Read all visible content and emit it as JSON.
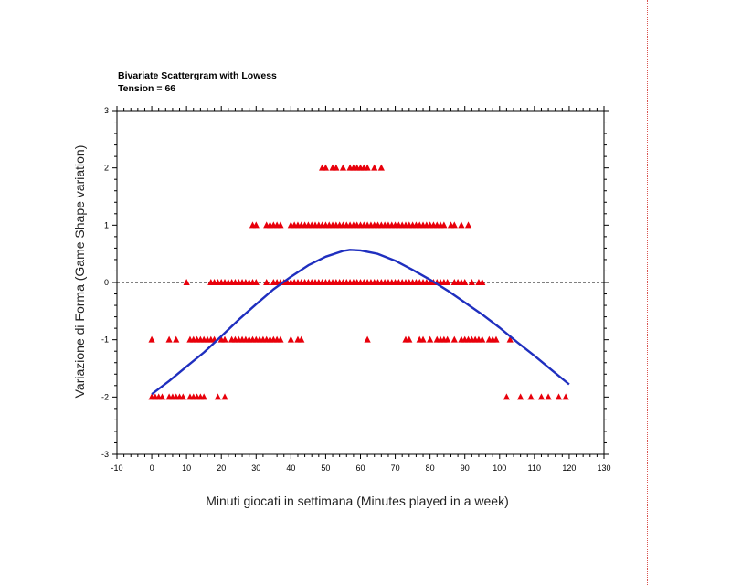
{
  "chart_data": {
    "type": "scatter",
    "title": "Bivariate Scattergram with Lowess",
    "subtitle": "Tension = 66",
    "xlabel": "Minuti giocati in settimana (Minutes played in a week)",
    "ylabel": "Variazione di Forma (Game Shape variation)",
    "xlim": [
      -10,
      130
    ],
    "ylim": [
      -3,
      3
    ],
    "x_ticks": [
      -10,
      0,
      10,
      20,
      30,
      40,
      50,
      60,
      70,
      80,
      90,
      100,
      110,
      120,
      130
    ],
    "y_ticks": [
      -3,
      -2,
      -1,
      0,
      1,
      2,
      3
    ],
    "reference_line": {
      "y": 0,
      "style": "dashed",
      "color": "#000000"
    },
    "grid": false,
    "colors": {
      "points": "#e8000b",
      "curve": "#1f2fbf"
    },
    "series": [
      {
        "marker": "triangle",
        "points": [
          [
            49,
            2
          ],
          [
            50,
            2
          ],
          [
            52,
            2
          ],
          [
            53,
            2
          ],
          [
            55,
            2
          ],
          [
            57,
            2
          ],
          [
            58,
            2
          ],
          [
            59,
            2
          ],
          [
            60,
            2
          ],
          [
            61,
            2
          ],
          [
            62,
            2
          ],
          [
            64,
            2
          ],
          [
            66,
            2
          ],
          [
            29,
            1
          ],
          [
            30,
            1
          ],
          [
            33,
            1
          ],
          [
            34,
            1
          ],
          [
            35,
            1
          ],
          [
            36,
            1
          ],
          [
            37,
            1
          ],
          [
            40,
            1
          ],
          [
            41,
            1
          ],
          [
            42,
            1
          ],
          [
            43,
            1
          ],
          [
            44,
            1
          ],
          [
            45,
            1
          ],
          [
            46,
            1
          ],
          [
            47,
            1
          ],
          [
            48,
            1
          ],
          [
            49,
            1
          ],
          [
            50,
            1
          ],
          [
            51,
            1
          ],
          [
            52,
            1
          ],
          [
            53,
            1
          ],
          [
            54,
            1
          ],
          [
            55,
            1
          ],
          [
            56,
            1
          ],
          [
            57,
            1
          ],
          [
            58,
            1
          ],
          [
            59,
            1
          ],
          [
            60,
            1
          ],
          [
            61,
            1
          ],
          [
            62,
            1
          ],
          [
            63,
            1
          ],
          [
            64,
            1
          ],
          [
            65,
            1
          ],
          [
            66,
            1
          ],
          [
            67,
            1
          ],
          [
            68,
            1
          ],
          [
            69,
            1
          ],
          [
            70,
            1
          ],
          [
            71,
            1
          ],
          [
            72,
            1
          ],
          [
            73,
            1
          ],
          [
            74,
            1
          ],
          [
            75,
            1
          ],
          [
            76,
            1
          ],
          [
            77,
            1
          ],
          [
            78,
            1
          ],
          [
            79,
            1
          ],
          [
            80,
            1
          ],
          [
            81,
            1
          ],
          [
            82,
            1
          ],
          [
            83,
            1
          ],
          [
            84,
            1
          ],
          [
            86,
            1
          ],
          [
            87,
            1
          ],
          [
            89,
            1
          ],
          [
            91,
            1
          ],
          [
            10,
            0
          ],
          [
            17,
            0
          ],
          [
            18,
            0
          ],
          [
            19,
            0
          ],
          [
            20,
            0
          ],
          [
            21,
            0
          ],
          [
            22,
            0
          ],
          [
            23,
            0
          ],
          [
            24,
            0
          ],
          [
            25,
            0
          ],
          [
            26,
            0
          ],
          [
            27,
            0
          ],
          [
            28,
            0
          ],
          [
            29,
            0
          ],
          [
            30,
            0
          ],
          [
            33,
            0
          ],
          [
            35,
            0
          ],
          [
            36,
            0
          ],
          [
            37,
            0
          ],
          [
            38,
            0
          ],
          [
            39,
            0
          ],
          [
            40,
            0
          ],
          [
            41,
            0
          ],
          [
            42,
            0
          ],
          [
            43,
            0
          ],
          [
            44,
            0
          ],
          [
            45,
            0
          ],
          [
            46,
            0
          ],
          [
            47,
            0
          ],
          [
            48,
            0
          ],
          [
            49,
            0
          ],
          [
            50,
            0
          ],
          [
            51,
            0
          ],
          [
            52,
            0
          ],
          [
            53,
            0
          ],
          [
            54,
            0
          ],
          [
            55,
            0
          ],
          [
            56,
            0
          ],
          [
            57,
            0
          ],
          [
            58,
            0
          ],
          [
            59,
            0
          ],
          [
            60,
            0
          ],
          [
            61,
            0
          ],
          [
            62,
            0
          ],
          [
            63,
            0
          ],
          [
            64,
            0
          ],
          [
            65,
            0
          ],
          [
            66,
            0
          ],
          [
            67,
            0
          ],
          [
            68,
            0
          ],
          [
            69,
            0
          ],
          [
            70,
            0
          ],
          [
            71,
            0
          ],
          [
            72,
            0
          ],
          [
            73,
            0
          ],
          [
            74,
            0
          ],
          [
            75,
            0
          ],
          [
            76,
            0
          ],
          [
            77,
            0
          ],
          [
            78,
            0
          ],
          [
            79,
            0
          ],
          [
            80,
            0
          ],
          [
            81,
            0
          ],
          [
            82,
            0
          ],
          [
            83,
            0
          ],
          [
            84,
            0
          ],
          [
            85,
            0
          ],
          [
            87,
            0
          ],
          [
            88,
            0
          ],
          [
            89,
            0
          ],
          [
            90,
            0
          ],
          [
            92,
            0
          ],
          [
            94,
            0
          ],
          [
            95,
            0
          ],
          [
            0,
            -1
          ],
          [
            5,
            -1
          ],
          [
            7,
            -1
          ],
          [
            11,
            -1
          ],
          [
            12,
            -1
          ],
          [
            13,
            -1
          ],
          [
            14,
            -1
          ],
          [
            15,
            -1
          ],
          [
            16,
            -1
          ],
          [
            17,
            -1
          ],
          [
            18,
            -1
          ],
          [
            20,
            -1
          ],
          [
            21,
            -1
          ],
          [
            23,
            -1
          ],
          [
            24,
            -1
          ],
          [
            25,
            -1
          ],
          [
            26,
            -1
          ],
          [
            27,
            -1
          ],
          [
            28,
            -1
          ],
          [
            29,
            -1
          ],
          [
            30,
            -1
          ],
          [
            31,
            -1
          ],
          [
            32,
            -1
          ],
          [
            33,
            -1
          ],
          [
            34,
            -1
          ],
          [
            35,
            -1
          ],
          [
            36,
            -1
          ],
          [
            37,
            -1
          ],
          [
            40,
            -1
          ],
          [
            42,
            -1
          ],
          [
            43,
            -1
          ],
          [
            62,
            -1
          ],
          [
            73,
            -1
          ],
          [
            74,
            -1
          ],
          [
            77,
            -1
          ],
          [
            78,
            -1
          ],
          [
            80,
            -1
          ],
          [
            82,
            -1
          ],
          [
            83,
            -1
          ],
          [
            84,
            -1
          ],
          [
            85,
            -1
          ],
          [
            87,
            -1
          ],
          [
            89,
            -1
          ],
          [
            90,
            -1
          ],
          [
            91,
            -1
          ],
          [
            92,
            -1
          ],
          [
            93,
            -1
          ],
          [
            94,
            -1
          ],
          [
            95,
            -1
          ],
          [
            97,
            -1
          ],
          [
            98,
            -1
          ],
          [
            99,
            -1
          ],
          [
            103,
            -1
          ],
          [
            0,
            -2
          ],
          [
            1,
            -2
          ],
          [
            2,
            -2
          ],
          [
            3,
            -2
          ],
          [
            5,
            -2
          ],
          [
            6,
            -2
          ],
          [
            7,
            -2
          ],
          [
            8,
            -2
          ],
          [
            9,
            -2
          ],
          [
            11,
            -2
          ],
          [
            12,
            -2
          ],
          [
            13,
            -2
          ],
          [
            14,
            -2
          ],
          [
            15,
            -2
          ],
          [
            19,
            -2
          ],
          [
            21,
            -2
          ],
          [
            102,
            -2
          ],
          [
            106,
            -2
          ],
          [
            109,
            -2
          ],
          [
            112,
            -2
          ],
          [
            114,
            -2
          ],
          [
            117,
            -2
          ],
          [
            119,
            -2
          ]
        ]
      }
    ],
    "lowess": {
      "x": [
        0,
        5,
        10,
        15,
        20,
        25,
        30,
        35,
        40,
        45,
        50,
        55,
        57,
        60,
        65,
        70,
        75,
        80,
        85,
        90,
        95,
        100,
        105,
        110,
        115,
        120
      ],
      "y": [
        -1.95,
        -1.72,
        -1.47,
        -1.22,
        -0.94,
        -0.65,
        -0.38,
        -0.12,
        0.1,
        0.3,
        0.45,
        0.55,
        0.57,
        0.56,
        0.5,
        0.38,
        0.22,
        0.05,
        -0.14,
        -0.35,
        -0.56,
        -0.79,
        -1.04,
        -1.28,
        -1.53,
        -1.78
      ]
    }
  }
}
